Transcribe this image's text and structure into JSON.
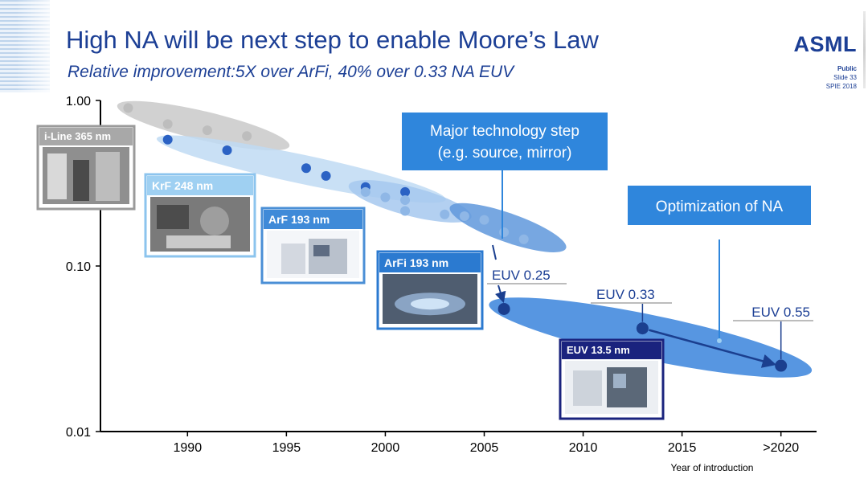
{
  "header": {
    "title": "High NA will be next step to enable Moore’s Law",
    "subtitle": "Relative improvement:5X over ArFi, 40% over 0.33 NA EUV",
    "logo": "ASML",
    "meta": [
      "Public",
      "Slide 33",
      "SPIE 2018"
    ]
  },
  "chart_data": {
    "type": "scatter",
    "title": "High NA will be next step to enable Moore’s Law",
    "subtitle": "Relative improvement:5X over ArFi, 40% over 0.33 NA EUV",
    "xlabel": "Year of introduction",
    "ylabel": "",
    "y_scale": "log",
    "ylim": [
      0.01,
      1.0
    ],
    "xlim": [
      1986,
      2021
    ],
    "x_ticks": [
      {
        "value": 1990,
        "label": "1990"
      },
      {
        "value": 1995,
        "label": "1995"
      },
      {
        "value": 2000,
        "label": "2000"
      },
      {
        "value": 2005,
        "label": "2005"
      },
      {
        "value": 2010,
        "label": "2010"
      },
      {
        "value": 2015,
        "label": "2015"
      },
      {
        "value": 2020,
        "label": ">2020"
      }
    ],
    "y_ticks": [
      {
        "value": 1.0,
        "label": "1.00"
      },
      {
        "value": 0.1,
        "label": "0.10"
      },
      {
        "value": 0.01,
        "label": "0.01"
      }
    ],
    "grid": false,
    "legend": "none",
    "series": [
      {
        "color": "#bdbdbd",
        "points": [
          [
            1987,
            0.9
          ],
          [
            1989,
            0.72
          ],
          [
            1991,
            0.66
          ],
          [
            1993,
            0.61
          ]
        ]
      },
      {
        "color": "#2b62c4",
        "points": [
          [
            1989,
            0.58
          ],
          [
            1992,
            0.5
          ],
          [
            1996,
            0.39
          ],
          [
            1997,
            0.35
          ],
          [
            1999,
            0.3
          ],
          [
            2001,
            0.28
          ]
        ]
      },
      {
        "color": "#8fb7e6",
        "points": [
          [
            1999,
            0.28
          ],
          [
            2000,
            0.26
          ],
          [
            2001,
            0.25
          ],
          [
            2001,
            0.215
          ],
          [
            2003,
            0.205
          ],
          [
            2004,
            0.2
          ],
          [
            2005,
            0.19
          ],
          [
            2006,
            0.16
          ],
          [
            2007,
            0.145
          ]
        ]
      },
      {
        "color": "#1b3f8f",
        "points": [
          [
            2006,
            0.055
          ],
          [
            2013,
            0.042
          ],
          [
            2020,
            0.025
          ]
        ]
      }
    ],
    "ellipses": [
      {
        "x1": 1987,
        "y1": 0.9,
        "x2": 1994.6,
        "y2": 0.55,
        "color": "#c9c9c9"
      },
      {
        "x1": 1989,
        "y1": 0.57,
        "x2": 2002.5,
        "y2": 0.26,
        "color": "#bfdaf3"
      },
      {
        "x1": 1998.7,
        "y1": 0.295,
        "x2": 2003.8,
        "y2": 0.205,
        "color": "#a6c8ee"
      },
      {
        "x1": 2003.8,
        "y1": 0.215,
        "x2": 2008.6,
        "y2": 0.135,
        "color": "#5f98dc"
      },
      {
        "x1": 2005.8,
        "y1": 0.057,
        "x2": 2021,
        "y2": 0.024,
        "color": "#3a84dc"
      }
    ],
    "callouts": [
      {
        "text": "Major technology step",
        "text2": "(e.g. source, mirror)"
      },
      {
        "text": "Optimization of NA"
      }
    ],
    "euv_labels": [
      {
        "text": "EUV 0.25",
        "x": 2006
      },
      {
        "text": "EUV 0.33",
        "x": 2013
      },
      {
        "text": "EUV 0.55",
        "x": 2020
      }
    ],
    "technologies": [
      {
        "label": "i-Line 365 nm",
        "border": "#9a9a9a",
        "header_bg": "#a8a8a8"
      },
      {
        "label": "KrF 248 nm",
        "border": "#8cc4ee",
        "header_bg": "#9fd0f2"
      },
      {
        "label": "ArF 193 nm",
        "border": "#4a8fd6",
        "header_bg": "#3f8ad8"
      },
      {
        "label": "ArFi 193 nm",
        "border": "#2b7ad0",
        "header_bg": "#2b7ad0"
      },
      {
        "label": "EUV 13.5 nm",
        "border": "#1a237e",
        "header_bg": "#1a237e"
      }
    ],
    "colors": {
      "axis": "#000000",
      "text": "#1c3f95",
      "callout": "#2f86dc"
    }
  }
}
